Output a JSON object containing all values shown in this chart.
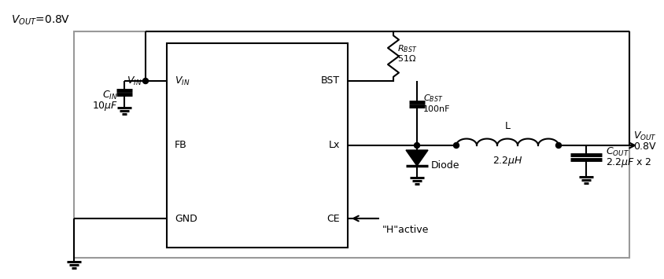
{
  "bg_color": "#ffffff",
  "line_color": "#000000",
  "gray_color": "#999999",
  "cin_label": "$C_{IN}$",
  "cin_val": "$10\\mu F$",
  "cbst_label": "$C_{BST}$",
  "cbst_val": "100nF",
  "rbst_label": "$R_{BST}$",
  "rbst_val": "$51\\Omega$",
  "l_label": "L",
  "l_val": "$2.2\\mu H$",
  "cout_label": "$C_{OUT}$",
  "cout_val": "$2.2\\mu F$ x 2",
  "diode_label": "Diode",
  "vin_label": "$V_{IN}$",
  "vout_label": "$V_{OUT}$",
  "vout_val": "0.8V",
  "title_label": "$V_{OUT}$=0.8V",
  "fb_label": "FB",
  "gnd_label": "GND",
  "bst_label": "BST",
  "lx_label": "Lx",
  "ce_label": "CE",
  "ce_note": "\"H\"active"
}
